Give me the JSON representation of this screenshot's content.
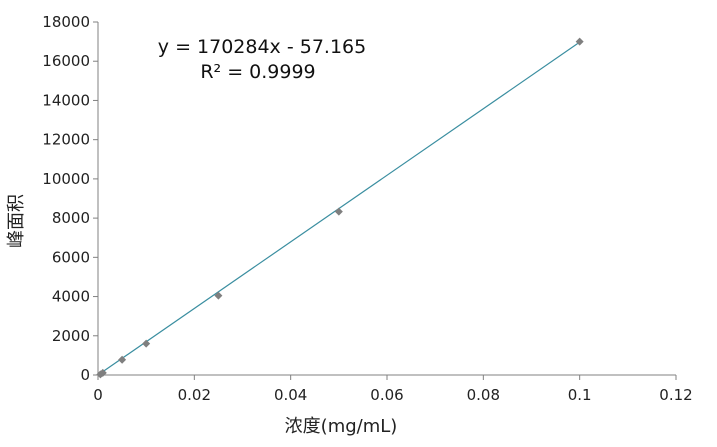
{
  "chart_data": {
    "type": "scatter",
    "xlabel": "浓度(mg/mL)",
    "ylabel": "峰面积",
    "xlim": [
      0,
      0.12
    ],
    "ylim": [
      0,
      18000
    ],
    "x_ticks": [
      0,
      0.02,
      0.04,
      0.06,
      0.08,
      0.1,
      0.12
    ],
    "x_tick_labels": [
      "0",
      "0.02",
      "0.04",
      "0.06",
      "0.08",
      "0.1",
      "0.12"
    ],
    "y_ticks": [
      0,
      2000,
      4000,
      6000,
      8000,
      10000,
      12000,
      14000,
      16000,
      18000
    ],
    "y_tick_labels": [
      "0",
      "2000",
      "4000",
      "6000",
      "8000",
      "10000",
      "12000",
      "14000",
      "16000",
      "18000"
    ],
    "grid": false,
    "series": [
      {
        "points": [
          {
            "x": 0.0005,
            "y": 30
          },
          {
            "x": 0.001,
            "y": 110
          },
          {
            "x": 0.005,
            "y": 780
          },
          {
            "x": 0.01,
            "y": 1600
          },
          {
            "x": 0.025,
            "y": 4050
          },
          {
            "x": 0.05,
            "y": 8330
          },
          {
            "x": 0.1,
            "y": 17000
          }
        ],
        "color": "#7f7f7f"
      }
    ],
    "trendline": {
      "type": "linear",
      "slope": 170284,
      "intercept": -57.165,
      "color": "#3a8ea0",
      "equation_text": "y = 170284x - 57.165",
      "r2_text": "R² = 0.9999"
    }
  }
}
